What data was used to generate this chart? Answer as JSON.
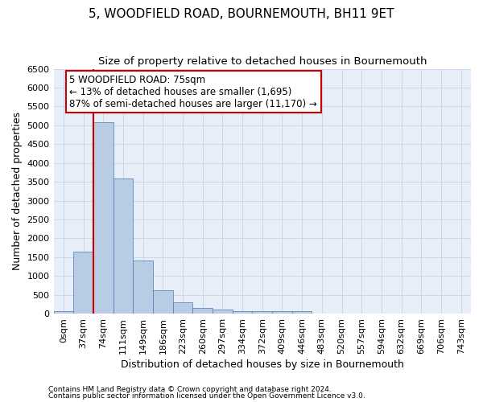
{
  "title": "5, WOODFIELD ROAD, BOURNEMOUTH, BH11 9ET",
  "subtitle": "Size of property relative to detached houses in Bournemouth",
  "xlabel": "Distribution of detached houses by size in Bournemouth",
  "ylabel": "Number of detached properties",
  "footer1": "Contains HM Land Registry data © Crown copyright and database right 2024.",
  "footer2": "Contains public sector information licensed under the Open Government Licence v3.0.",
  "bin_labels": [
    "0sqm",
    "37sqm",
    "74sqm",
    "111sqm",
    "149sqm",
    "186sqm",
    "223sqm",
    "260sqm",
    "297sqm",
    "334sqm",
    "372sqm",
    "409sqm",
    "446sqm",
    "483sqm",
    "520sqm",
    "557sqm",
    "594sqm",
    "632sqm",
    "669sqm",
    "706sqm",
    "743sqm"
  ],
  "bar_values": [
    75,
    1650,
    5080,
    3590,
    1410,
    620,
    300,
    145,
    115,
    75,
    55,
    55,
    55,
    10,
    5,
    5,
    5,
    5,
    5,
    5,
    5
  ],
  "bar_color": "#b8cce4",
  "bar_edge_color": "#4a7ab5",
  "highlight_idx": 2,
  "highlight_line_color": "#cc0000",
  "annotation_text": "5 WOODFIELD ROAD: 75sqm\n← 13% of detached houses are smaller (1,695)\n87% of semi-detached houses are larger (11,170) →",
  "annotation_box_color": "#ffffff",
  "annotation_box_edge_color": "#cc0000",
  "ylim": [
    0,
    6500
  ],
  "yticks": [
    0,
    500,
    1000,
    1500,
    2000,
    2500,
    3000,
    3500,
    4000,
    4500,
    5000,
    5500,
    6000,
    6500
  ],
  "grid_color": "#c8d8ec",
  "bg_color": "#e8eef8",
  "title_fontsize": 11,
  "subtitle_fontsize": 9.5,
  "axis_label_fontsize": 9,
  "tick_fontsize": 8,
  "annotation_fontsize": 8.5,
  "footer_fontsize": 6.5
}
